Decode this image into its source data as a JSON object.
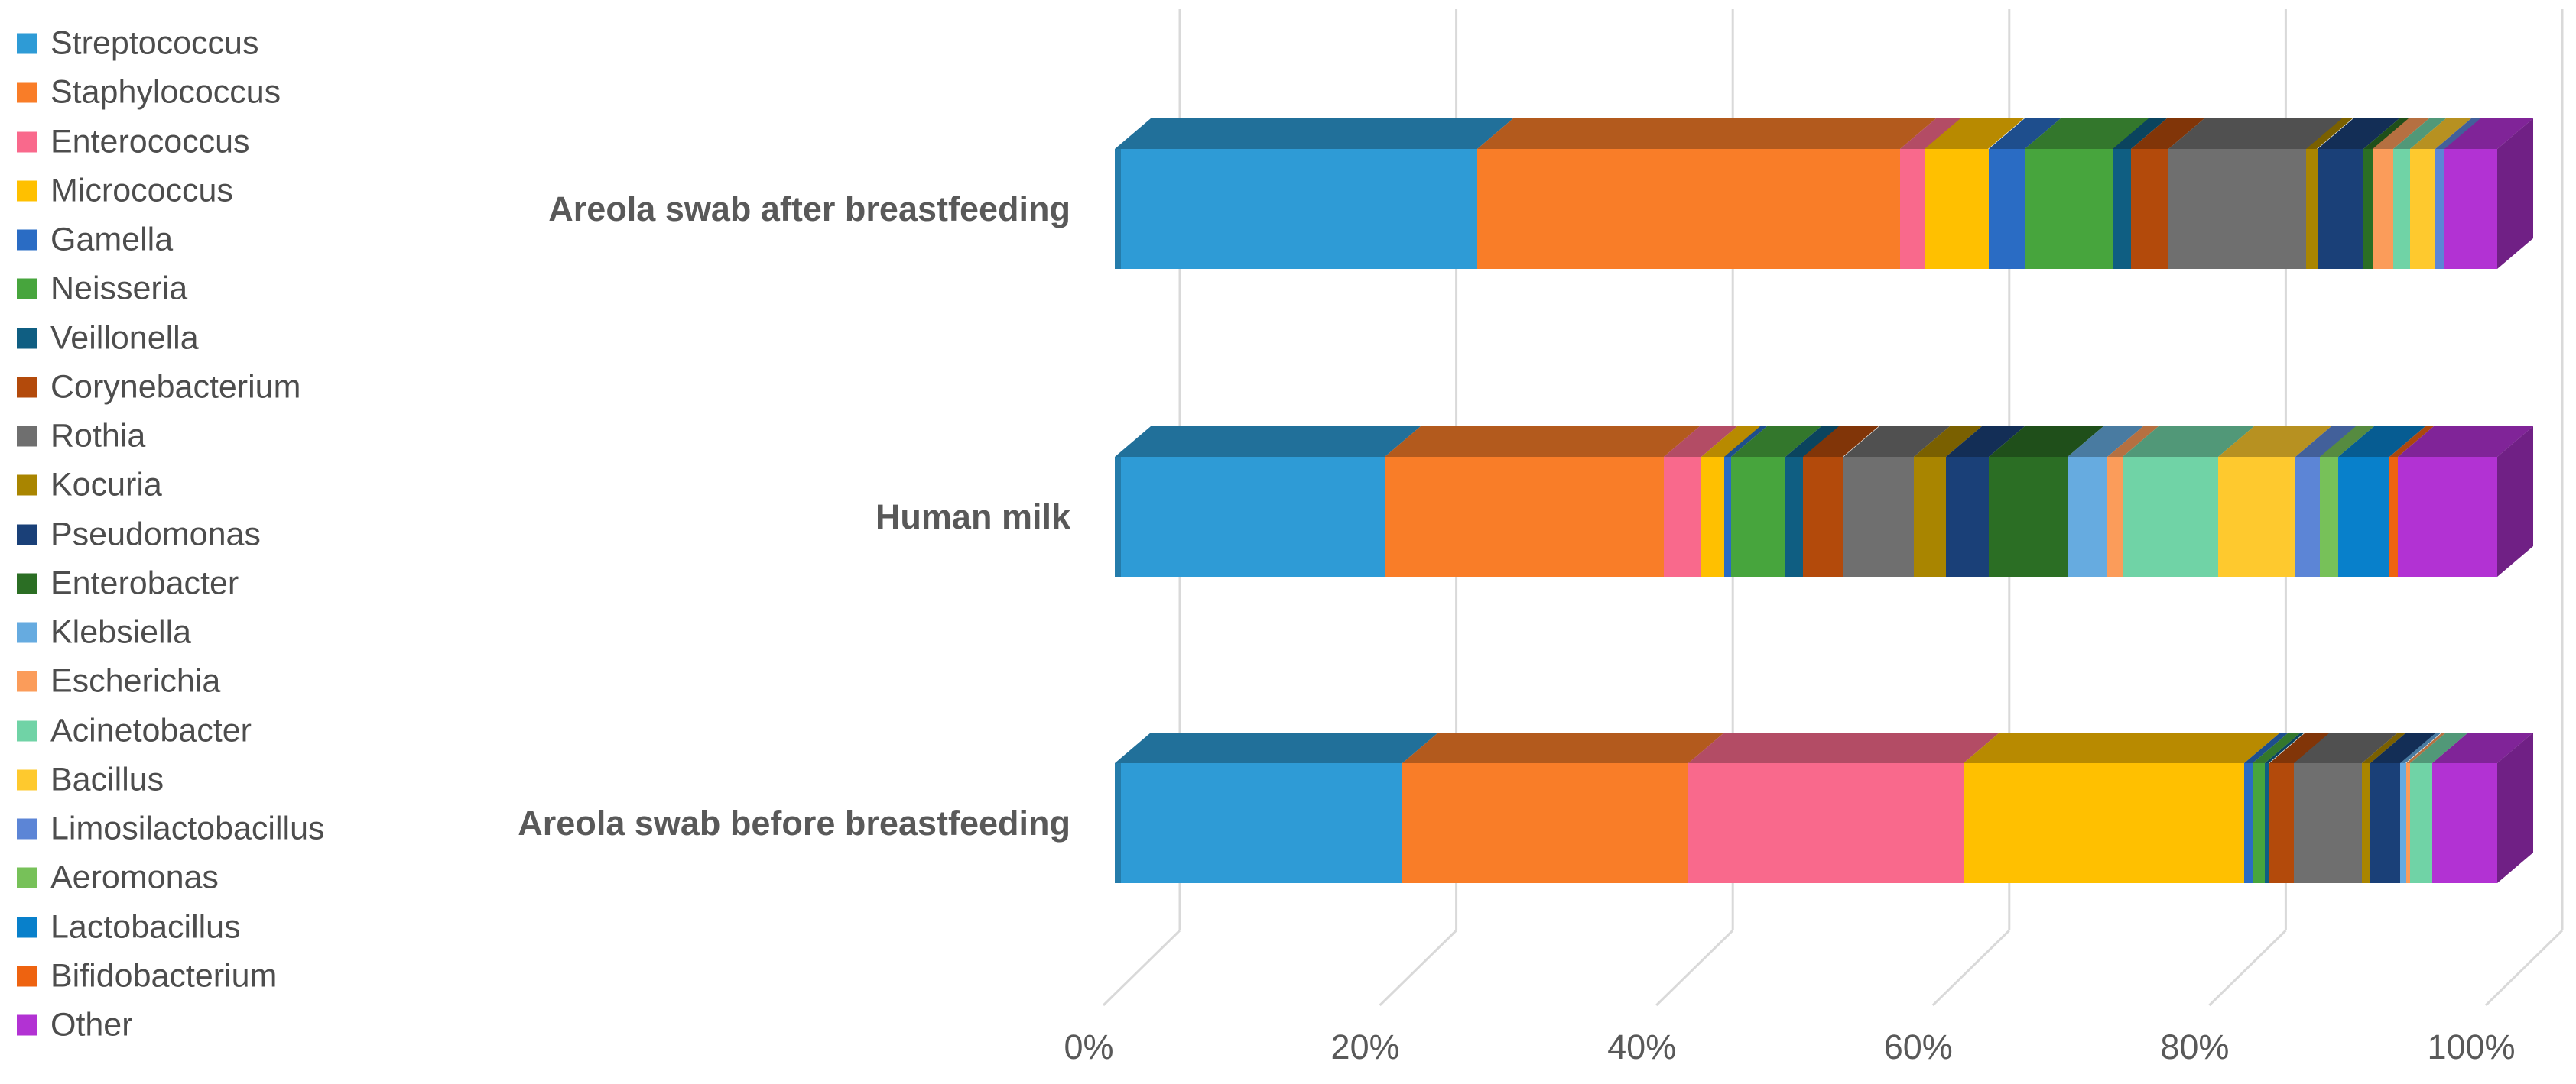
{
  "chart_data": {
    "type": "bar",
    "subtype": "stacked-horizontal-3d",
    "stacked": true,
    "orientation": "horizontal",
    "title": "",
    "xlabel": "",
    "ylabel": "",
    "x_axis": {
      "ticks": [
        "0%",
        "20%",
        "40%",
        "60%",
        "80%",
        "100%"
      ],
      "range": [
        0,
        100
      ],
      "unit": "percent"
    },
    "grid": true,
    "legend_position": "left",
    "categories": [
      "Areola swab after breastfeeding",
      "Human milk",
      "Areola swab before breastfeeding"
    ],
    "series": [
      {
        "name": "Streptococcus",
        "color": "#2E9BD6",
        "values": [
          26.2,
          19.5,
          20.8
        ]
      },
      {
        "name": "Staphylococcus",
        "color": "#F97D28",
        "values": [
          30.6,
          20.2,
          20.7
        ]
      },
      {
        "name": "Enterococcus",
        "color": "#F9698C",
        "values": [
          1.8,
          2.7,
          19.9
        ]
      },
      {
        "name": "Micrococcus",
        "color": "#FFC000",
        "values": [
          4.6,
          1.7,
          20.3
        ]
      },
      {
        "name": "Gamella",
        "color": "#2A6CC4",
        "values": [
          2.6,
          0.5,
          0.6
        ]
      },
      {
        "name": "Neisseria",
        "color": "#47A53D",
        "values": [
          6.4,
          3.9,
          0.9
        ]
      },
      {
        "name": "Veillonella",
        "color": "#0F5E82",
        "values": [
          1.3,
          1.3,
          0.3
        ]
      },
      {
        "name": "Corynebacterium",
        "color": "#B34A0B",
        "values": [
          2.7,
          2.9,
          1.8
        ]
      },
      {
        "name": "Rothia",
        "color": "#6F6F6F",
        "values": [
          10.0,
          5.1,
          4.9
        ]
      },
      {
        "name": "Kocuria",
        "color": "#A98500",
        "values": [
          0.8,
          2.3,
          0.6
        ]
      },
      {
        "name": "Pseudomonas",
        "color": "#1A4078",
        "values": [
          3.3,
          3.1,
          2.2
        ]
      },
      {
        "name": "Enterobacter",
        "color": "#2B6E24",
        "values": [
          0.7,
          5.7,
          0
        ]
      },
      {
        "name": "Klebsiella",
        "color": "#66ABE0",
        "values": [
          0,
          2.9,
          0.4
        ]
      },
      {
        "name": "Escherichia",
        "color": "#FB9C5A",
        "values": [
          1.5,
          1.1,
          0.3
        ]
      },
      {
        "name": "Acinetobacter",
        "color": "#70D3A6",
        "values": [
          1.2,
          6.9,
          1.6
        ]
      },
      {
        "name": "Bacillus",
        "color": "#FEC92E",
        "values": [
          1.8,
          5.6,
          0
        ]
      },
      {
        "name": "Limosilactobacillus",
        "color": "#5C85D6",
        "values": [
          0.7,
          1.8,
          0
        ]
      },
      {
        "name": "Aeromonas",
        "color": "#77C159",
        "values": [
          0,
          1.3,
          0
        ]
      },
      {
        "name": "Lactobacillus",
        "color": "#0880CB",
        "values": [
          0,
          3.7,
          0
        ]
      },
      {
        "name": "Bifidobacterium",
        "color": "#EE6310",
        "values": [
          0,
          0.6,
          0
        ]
      },
      {
        "name": "Other",
        "color": "#B232D3",
        "values": [
          3.8,
          7.2,
          4.7
        ]
      }
    ],
    "colors": {
      "gridline": "#D9D9D9",
      "axis_label": "#595959",
      "category_label": "#595959",
      "legend_text": "#4d4d4d",
      "background": "#FFFFFF"
    }
  }
}
